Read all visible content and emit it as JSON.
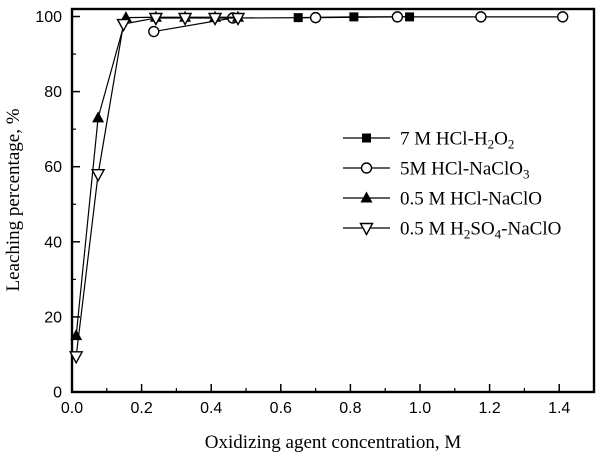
{
  "window": {
    "background_color": "#ffffff",
    "foreground_color": "#000000"
  },
  "chart_data": {
    "type": "line",
    "title": "",
    "xlabel": "Oxidizing agent concentration, M",
    "ylabel": "Leaching percentage, %",
    "xlim": [
      0,
      1.5
    ],
    "ylim": [
      0,
      102
    ],
    "grid": false,
    "legend_position": "center-right",
    "x_tick_values": [
      0.0,
      0.2,
      0.4,
      0.6,
      0.8,
      1.0,
      1.2,
      1.4
    ],
    "x_tick_labels": [
      "0.0",
      "0.2",
      "0.4",
      "0.6",
      "0.8",
      "1.0",
      "1.2",
      "1.4"
    ],
    "x_minor_ticks": [
      0.1,
      0.3,
      0.5,
      0.7,
      0.9,
      1.1,
      1.3
    ],
    "y_tick_values": [
      0,
      20,
      40,
      60,
      80,
      100
    ],
    "y_tick_labels": [
      "0",
      "20",
      "40",
      "60",
      "80",
      "100"
    ],
    "y_minor_ticks": [
      10,
      30,
      50,
      70,
      90
    ],
    "series": [
      {
        "name": "7 M HCl-H2O2",
        "label_segments": [
          [
            "7 M HCl-H",
            false
          ],
          [
            "2",
            true
          ],
          [
            "O",
            false
          ],
          [
            "2",
            true
          ]
        ],
        "marker": "square-filled",
        "color": "#000000",
        "points": [
          [
            0.65,
            99.7
          ],
          [
            0.81,
            99.9
          ],
          [
            0.97,
            99.9
          ]
        ]
      },
      {
        "name": "5M HCl-NaClO3",
        "label_segments": [
          [
            "5M HCl-NaClO",
            false
          ],
          [
            "3",
            true
          ]
        ],
        "marker": "circle-open",
        "color": "#000000",
        "points": [
          [
            0.235,
            96
          ],
          [
            0.462,
            99.6
          ],
          [
            0.7,
            99.7
          ],
          [
            0.935,
            99.9
          ],
          [
            1.175,
            99.9
          ],
          [
            1.41,
            99.9
          ]
        ]
      },
      {
        "name": "0.5 M HCl-NaClO",
        "label_segments": [
          [
            "0.5 M HCl-NaClO",
            false
          ]
        ],
        "marker": "triangle-up-filled",
        "color": "#000000",
        "points": [
          [
            0.012,
            15
          ],
          [
            0.075,
            73
          ],
          [
            0.155,
            99.7
          ],
          [
            0.241,
            99.8
          ],
          [
            0.325,
            99.8
          ],
          [
            0.411,
            99.8
          ],
          [
            0.477,
            99.8
          ]
        ]
      },
      {
        "name": "0.5 M H2SO4-NaClO",
        "label_segments": [
          [
            "0.5 M H",
            false
          ],
          [
            "2",
            true
          ],
          [
            "SO",
            false
          ],
          [
            "4",
            true
          ],
          [
            "-NaClO",
            false
          ]
        ],
        "marker": "triangle-down-open",
        "color": "#000000",
        "points": [
          [
            0.012,
            9.5
          ],
          [
            0.075,
            58
          ],
          [
            0.148,
            98
          ],
          [
            0.241,
            99.6
          ],
          [
            0.325,
            99.6
          ],
          [
            0.411,
            99.6
          ],
          [
            0.477,
            99.6
          ]
        ]
      }
    ]
  }
}
